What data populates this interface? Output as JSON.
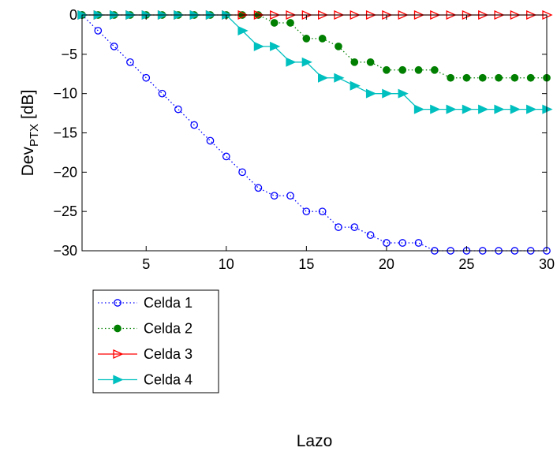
{
  "chart_data": {
    "type": "line",
    "xlabel": "Lazo",
    "ylabel_main": "Dev",
    "ylabel_sub": "PTX",
    "ylabel_unit": " [dB]",
    "xlim": [
      1,
      30
    ],
    "ylim": [
      -30,
      0
    ],
    "xticks": [
      5,
      10,
      15,
      20,
      25,
      30
    ],
    "yticks": [
      0,
      -5,
      -10,
      -15,
      -20,
      -25,
      -30
    ],
    "grid": false,
    "legend_position": "bottom-left",
    "x": [
      1,
      2,
      3,
      4,
      5,
      6,
      7,
      8,
      9,
      10,
      11,
      12,
      13,
      14,
      15,
      16,
      17,
      18,
      19,
      20,
      21,
      22,
      23,
      24,
      25,
      26,
      27,
      28,
      29,
      30
    ],
    "series": [
      {
        "name": "Celda 1",
        "color": "#0000ff",
        "line": "dotted",
        "marker": "circle-open",
        "values": [
          0,
          -2,
          -4,
          -6,
          -8,
          -10,
          -12,
          -14,
          -16,
          -18,
          -20,
          -22,
          -23,
          -23,
          -25,
          -25,
          -27,
          -27,
          -28,
          -29,
          -29,
          -29,
          -30,
          -30,
          -30,
          -30,
          -30,
          -30,
          -30,
          -30
        ]
      },
      {
        "name": "Celda 2",
        "color": "#007f00",
        "line": "dotted",
        "marker": "circle-filled",
        "values": [
          0,
          0,
          0,
          0,
          0,
          0,
          0,
          0,
          0,
          0,
          0,
          0,
          -1,
          -1,
          -3,
          -3,
          -4,
          -6,
          -6,
          -7,
          -7,
          -7,
          -7,
          -8,
          -8,
          -8,
          -8,
          -8,
          -8,
          -8
        ]
      },
      {
        "name": "Celda 3",
        "color": "#ff0000",
        "line": "solid",
        "marker": "triangle-right-open",
        "values": [
          0,
          0,
          0,
          0,
          0,
          0,
          0,
          0,
          0,
          0,
          0,
          0,
          0,
          0,
          0,
          0,
          0,
          0,
          0,
          0,
          0,
          0,
          0,
          0,
          0,
          0,
          0,
          0,
          0,
          0
        ]
      },
      {
        "name": "Celda 4",
        "color": "#00bfbf",
        "line": "solid",
        "marker": "triangle-right-filled",
        "values": [
          0,
          0,
          0,
          0,
          0,
          0,
          0,
          0,
          0,
          0,
          -2,
          -4,
          -4,
          -6,
          -6,
          -8,
          -8,
          -9,
          -10,
          -10,
          -10,
          -12,
          -12,
          -12,
          -12,
          -12,
          -12,
          -12,
          -12,
          -12
        ]
      }
    ]
  }
}
